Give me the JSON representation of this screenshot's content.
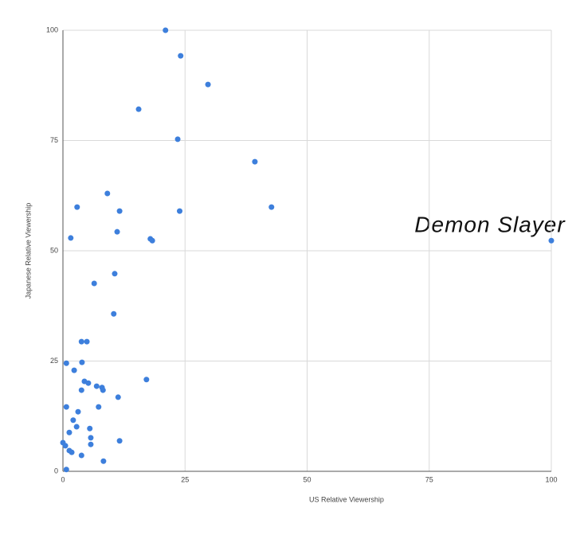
{
  "chart_data": {
    "type": "scatter",
    "x_label": "US Relative Viewership",
    "y_label": "Japanese Relative Viewership",
    "annotation": "Demon Slayer",
    "color": "#3d7fdc",
    "grid": true,
    "xlim": [
      0,
      100
    ],
    "xticks": [
      0,
      25,
      50,
      75,
      100
    ],
    "ylim": [
      0,
      100
    ],
    "yticks": [
      0,
      25,
      50,
      75,
      100
    ],
    "x": [
      21.0,
      24.1,
      29.7,
      15.5,
      23.5,
      39.3,
      42.7,
      23.9,
      9.1,
      11.6,
      2.9,
      11.1,
      17.9,
      18.3,
      1.6,
      100,
      10.6,
      6.4,
      10.4,
      3.8,
      4.9,
      0.7,
      3.9,
      2.3,
      17.1,
      4.4,
      5.2,
      6.9,
      8.0,
      8.2,
      3.8,
      11.3,
      7.3,
      0.7,
      3.1,
      2.1,
      2.8,
      5.5,
      1.3,
      5.7,
      11.6,
      0,
      5.7,
      0.5,
      1.3,
      1.8,
      3.8,
      8.3,
      0.7
    ],
    "values": [
      100,
      94.2,
      87.7,
      82.1,
      75.3,
      70.2,
      59.9,
      59.0,
      63.0,
      59.0,
      59.9,
      54.3,
      52.7,
      52.3,
      52.9,
      52.3,
      44.8,
      42.6,
      35.7,
      29.4,
      29.4,
      24.5,
      24.7,
      22.9,
      20.8,
      20.4,
      20.0,
      19.3,
      19.0,
      18.4,
      18.4,
      16.8,
      14.6,
      14.6,
      13.5,
      11.6,
      10.1,
      9.7,
      8.8,
      7.6,
      6.9,
      6.5,
      6.1,
      5.8,
      4.7,
      4.3,
      3.6,
      2.3,
      0.4
    ]
  }
}
